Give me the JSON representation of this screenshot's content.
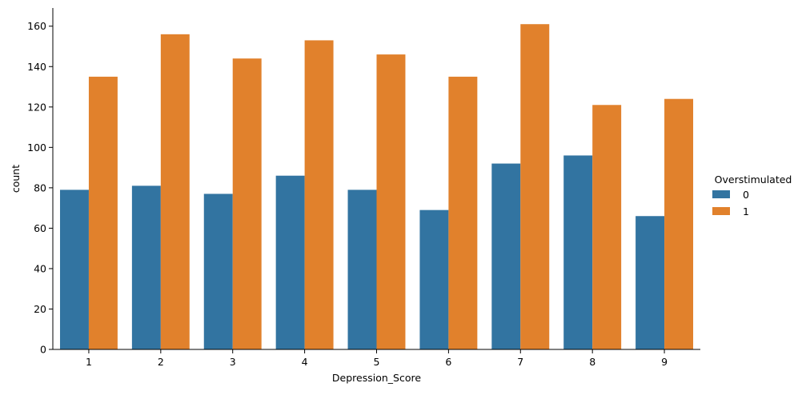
{
  "chart_data": {
    "type": "bar",
    "title": "",
    "xlabel": "Depression_Score",
    "ylabel": "count",
    "categories": [
      "1",
      "2",
      "3",
      "4",
      "5",
      "6",
      "7",
      "8",
      "9"
    ],
    "series": [
      {
        "name": "0",
        "color": "#3274a1",
        "values": [
          79,
          81,
          77,
          86,
          79,
          69,
          92,
          96,
          66
        ]
      },
      {
        "name": "1",
        "color": "#e1812c",
        "values": [
          135,
          156,
          144,
          153,
          146,
          135,
          161,
          121,
          124
        ]
      }
    ],
    "ylim": [
      0,
      169
    ],
    "yticks": [
      0,
      20,
      40,
      60,
      80,
      100,
      120,
      140,
      160
    ],
    "grid": false,
    "legend": {
      "title": "Overstimulated",
      "placement": "right"
    }
  }
}
